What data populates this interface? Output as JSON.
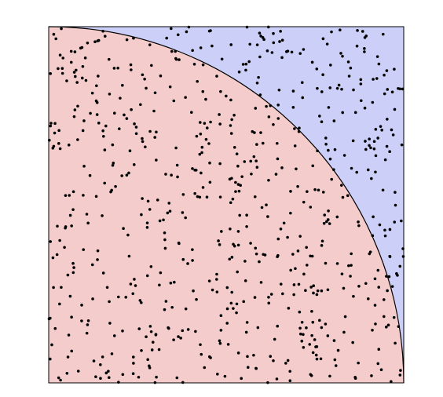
{
  "chart_data": {
    "type": "scatter",
    "title": "",
    "xlabel": "",
    "ylabel": "",
    "xlim": [
      0,
      1
    ],
    "ylim": [
      0,
      1
    ],
    "grid": false,
    "point_count": 700,
    "random_seed": 12345,
    "regions": [
      {
        "shape": "quarter-circle",
        "radius": 1,
        "fill": "#f5cccc"
      },
      {
        "shape": "remainder-of-unit-square",
        "fill": "#cccff7"
      }
    ],
    "boundary_color": "#000000",
    "point_color": "#000000"
  }
}
